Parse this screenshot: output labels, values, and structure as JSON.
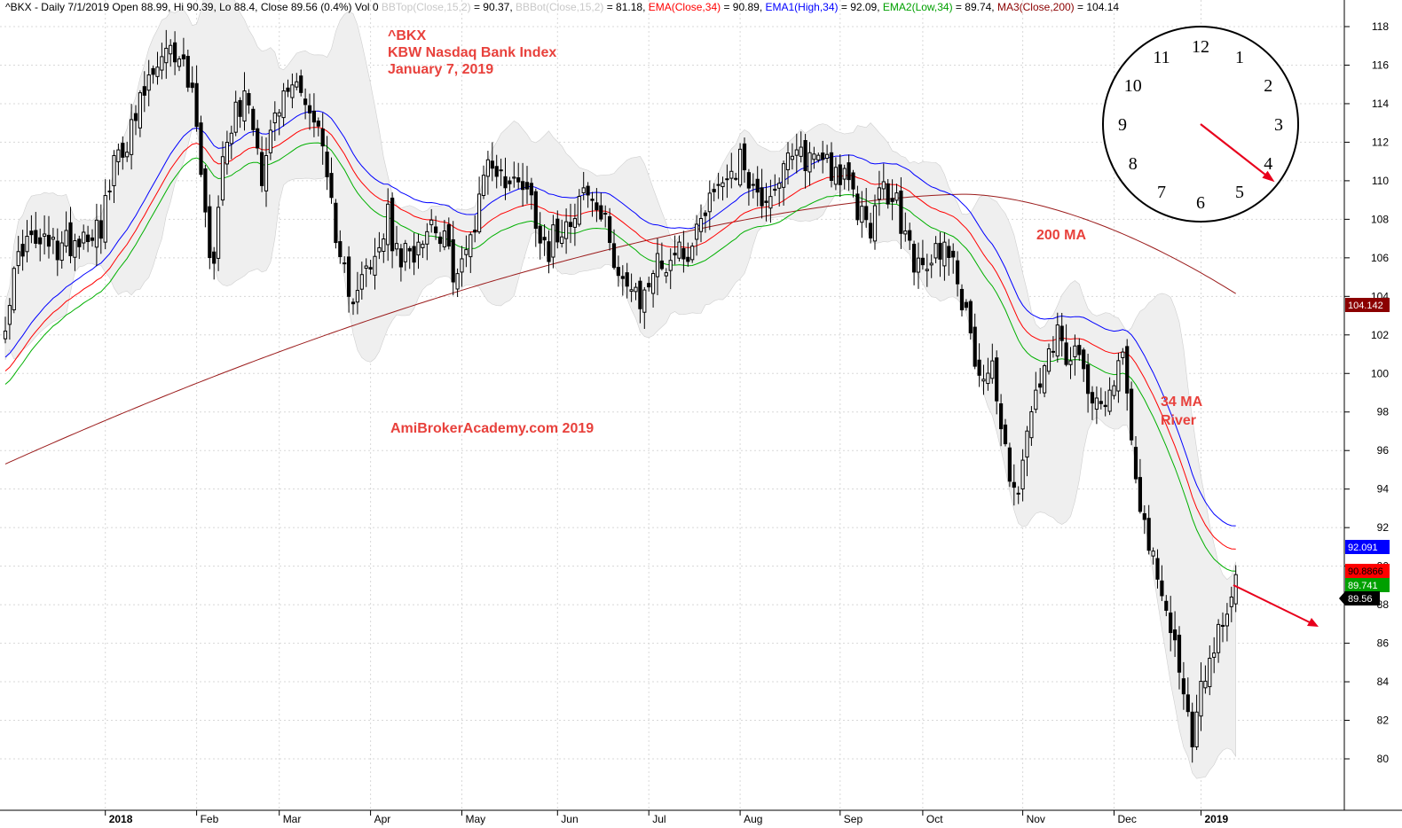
{
  "header": {
    "prefix": "^BKX - Daily 7/1/2019 Open 88.99, Hi 90.39, Lo 88.4, Close 89.56 (0.4%) Vol 0 ",
    "bbtop_label": "BBTop(Close,15,2)",
    "bbtop_value": " = 90.37, ",
    "bbbot_label": "BBBot(Close,15,2)",
    "bbbot_value": " = 81.18, ",
    "ema_label": "EMA(Close,34)",
    "ema_value": " = 90.89, ",
    "ema1_label": "EMA1(High,34)",
    "ema1_value": " = 92.09, ",
    "ema2_label": "EMA2(Low,34)",
    "ema2_value": " = 89.74, ",
    "ma3_label": "MA3(Close,200)",
    "ma3_value": " = 104.14"
  },
  "annotations": {
    "symbol": "^BKX",
    "index_name": "KBW Nasdaq Bank Index",
    "date": "January 7, 2019",
    "watermark": "AmiBrokerAcademy.com  2019",
    "ma200": "200 MA",
    "ma34_line1": "34 MA",
    "ma34_line2": "River"
  },
  "clock": {
    "numbers": [
      "12",
      "1",
      "2",
      "3",
      "4",
      "5",
      "6",
      "7",
      "8",
      "9",
      "10",
      "11"
    ],
    "hand_points_to_hour": 4
  },
  "value_tags": [
    {
      "text": "104.142",
      "value": 104.142,
      "bg": "#8b0000",
      "fg": "#ffffff"
    },
    {
      "text": "92.091",
      "value": 92.091,
      "bg": "#0000ff",
      "fg": "#ffffff"
    },
    {
      "text": "90.8866",
      "value": 90.8866,
      "bg": "#ff0000",
      "fg": "#000000"
    },
    {
      "text": "89.741",
      "value": 89.741,
      "bg": "#00a000",
      "fg": "#ffffff"
    },
    {
      "text": "89.56",
      "value": 89.56,
      "bg": "#000000",
      "fg": "#ffffff"
    }
  ],
  "colors": {
    "band_fill": "#efefef",
    "ema_close": "#ff0000",
    "ema_high": "#0000ff",
    "ema_low": "#00b000",
    "ma200": "#9b1c1c",
    "candle": "#000000",
    "grid": "#d8d8d8",
    "annotation": "#e8413c"
  },
  "chart_data": {
    "type": "candlestick",
    "ylim": [
      79.3,
      119.3
    ],
    "yticks": [
      80,
      82,
      84,
      86,
      88,
      90,
      92,
      94,
      96,
      98,
      100,
      102,
      104,
      106,
      108,
      110,
      112,
      114,
      116,
      118
    ],
    "x_labels": [
      {
        "label": "2018",
        "bold": true,
        "index": 23
      },
      {
        "label": "Feb",
        "bold": false,
        "index": 44
      },
      {
        "label": "Mar",
        "bold": false,
        "index": 63
      },
      {
        "label": "Apr",
        "bold": false,
        "index": 84
      },
      {
        "label": "May",
        "bold": false,
        "index": 105
      },
      {
        "label": "Jun",
        "bold": false,
        "index": 127
      },
      {
        "label": "Jul",
        "bold": false,
        "index": 148
      },
      {
        "label": "Aug",
        "bold": false,
        "index": 169
      },
      {
        "label": "Sep",
        "bold": false,
        "index": 192
      },
      {
        "label": "Oct",
        "bold": false,
        "index": 211
      },
      {
        "label": "Nov",
        "bold": false,
        "index": 234
      },
      {
        "label": "Dec",
        "bold": false,
        "index": 255
      },
      {
        "label": "2019",
        "bold": true,
        "index": 275
      }
    ],
    "close_anchors": [
      [
        0,
        103
      ],
      [
        4,
        106.8
      ],
      [
        12,
        106.5
      ],
      [
        18,
        107.3
      ],
      [
        22,
        107.8
      ],
      [
        26,
        111.5
      ],
      [
        29,
        112.5
      ],
      [
        32,
        114.5
      ],
      [
        34,
        115.5
      ],
      [
        37,
        116.3
      ],
      [
        40,
        116.8
      ],
      [
        42,
        115.2
      ],
      [
        44,
        113.5
      ],
      [
        46,
        108
      ],
      [
        48,
        105.5
      ],
      [
        50,
        112
      ],
      [
        53,
        113.8
      ],
      [
        56,
        114.3
      ],
      [
        59,
        110.5
      ],
      [
        61,
        112.5
      ],
      [
        65,
        114.8
      ],
      [
        68,
        115.2
      ],
      [
        70,
        113.5
      ],
      [
        72,
        112.5
      ],
      [
        74,
        111
      ],
      [
        76,
        106
      ],
      [
        78,
        105
      ],
      [
        80,
        104.3
      ],
      [
        82,
        105.5
      ],
      [
        84,
        105
      ],
      [
        86,
        106.5
      ],
      [
        88,
        108
      ],
      [
        90,
        106
      ],
      [
        93,
        106
      ],
      [
        96,
        107.5
      ],
      [
        99,
        108
      ],
      [
        102,
        106
      ],
      [
        104,
        105
      ],
      [
        106,
        106.2
      ],
      [
        108,
        108
      ],
      [
        110,
        110.7
      ],
      [
        113,
        110.8
      ],
      [
        116,
        109.5
      ],
      [
        118,
        110.5
      ],
      [
        121,
        109
      ],
      [
        123,
        107.5
      ],
      [
        125,
        106.5
      ],
      [
        127,
        107.5
      ],
      [
        130,
        108.3
      ],
      [
        133,
        109.5
      ],
      [
        136,
        108.5
      ],
      [
        139,
        107
      ],
      [
        141,
        105.5
      ],
      [
        144,
        104
      ],
      [
        146,
        103.5
      ],
      [
        149,
        105.5
      ],
      [
        152,
        105.8
      ],
      [
        155,
        106.5
      ],
      [
        158,
        106.5
      ],
      [
        160,
        108.5
      ],
      [
        163,
        109.5
      ],
      [
        166,
        110.5
      ],
      [
        170,
        111
      ],
      [
        173,
        109
      ],
      [
        176,
        109.5
      ],
      [
        179,
        110.5
      ],
      [
        182,
        111.2
      ],
      [
        185,
        111.2
      ],
      [
        188,
        111.5
      ],
      [
        190,
        110.8
      ],
      [
        193,
        110
      ],
      [
        196,
        108.5
      ],
      [
        199,
        107.8
      ],
      [
        202,
        109.5
      ],
      [
        205,
        108.7
      ],
      [
        207,
        107
      ],
      [
        209,
        106
      ],
      [
        211,
        105
      ],
      [
        214,
        106.3
      ],
      [
        217,
        106.8
      ],
      [
        220,
        104
      ],
      [
        222,
        101.5
      ],
      [
        225,
        100
      ],
      [
        227,
        100.5
      ],
      [
        229,
        97
      ],
      [
        231,
        95
      ],
      [
        233,
        94
      ],
      [
        235,
        96.5
      ],
      [
        237,
        99
      ],
      [
        240,
        100.5
      ],
      [
        242,
        101.8
      ],
      [
        245,
        100.5
      ],
      [
        247,
        100.8
      ],
      [
        249,
        99
      ],
      [
        251,
        99.5
      ],
      [
        253,
        98.5
      ],
      [
        255,
        100
      ],
      [
        257,
        101
      ],
      [
        259,
        97
      ],
      [
        261,
        93.5
      ],
      [
        263,
        91
      ],
      [
        265,
        89
      ],
      [
        267,
        87.5
      ],
      [
        269,
        86
      ],
      [
        271,
        84
      ],
      [
        273,
        80.5
      ],
      [
        275,
        83.5
      ],
      [
        277,
        85.5
      ],
      [
        279,
        86.5
      ],
      [
        281,
        88
      ],
      [
        283,
        89.56
      ]
    ],
    "ma200": {
      "start": 95.3,
      "end": 104.142
    },
    "ema_close_last": 90.8866,
    "ema_high_last": 92.091,
    "ema_low_last": 89.741
  }
}
